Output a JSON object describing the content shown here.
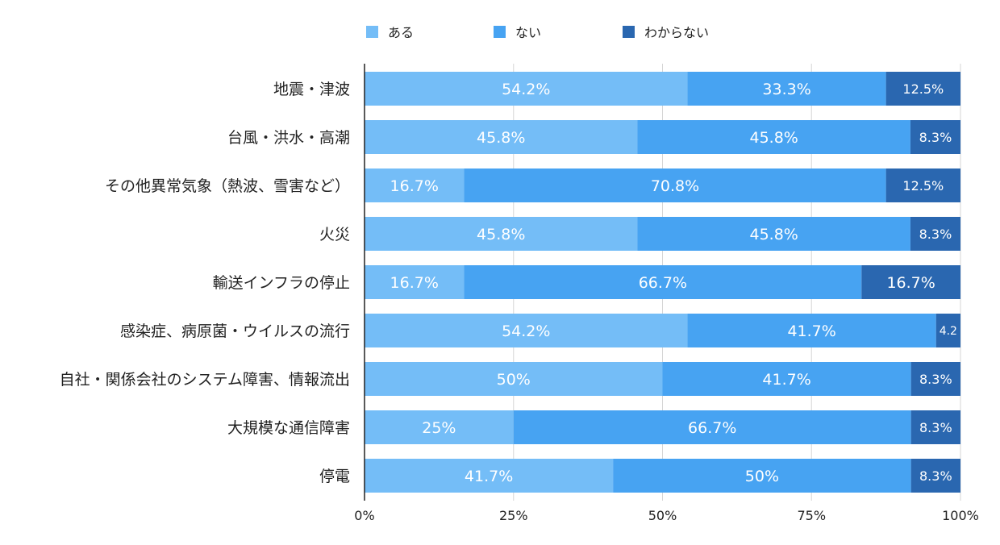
{
  "colors": {
    "ある": "#74bdf7",
    "ない": "#47a3f2",
    "わからない": "#2a67b0",
    "grid": "#d6d6d6",
    "axis": "#222222"
  },
  "chart_data": {
    "type": "bar",
    "orientation": "horizontal",
    "stacked": "percent",
    "title": "",
    "xlabel": "",
    "ylabel": "",
    "xlim": [
      0,
      100
    ],
    "x_ticks": [
      "0%",
      "25%",
      "50%",
      "75%",
      "100%"
    ],
    "grid": true,
    "legend": {
      "position": "top",
      "entries": [
        "ある",
        "ない",
        "わからない"
      ]
    },
    "categories": [
      "地震・津波",
      "台風・洪水・高潮",
      "その他異常気象（熱波、雪害など）",
      "火災",
      "輸送インフラの停止",
      "感染症、病原菌・ウイルスの流行",
      "自社・関係会社のシステム障害、情報流出",
      "大規模な通信障害",
      "停電"
    ],
    "series": [
      {
        "name": "ある",
        "values": [
          54.2,
          45.8,
          16.7,
          45.8,
          16.7,
          54.2,
          50,
          25,
          41.7
        ],
        "labels": [
          "54.2%",
          "45.8%",
          "16.7%",
          "45.8%",
          "16.7%",
          "54.2%",
          "50%",
          "25%",
          "41.7%"
        ]
      },
      {
        "name": "ない",
        "values": [
          33.3,
          45.8,
          70.8,
          45.8,
          66.7,
          41.7,
          41.7,
          66.7,
          50
        ],
        "labels": [
          "33.3%",
          "45.8%",
          "70.8%",
          "45.8%",
          "66.7%",
          "41.7%",
          "41.7%",
          "66.7%",
          "50%"
        ]
      },
      {
        "name": "わからない",
        "values": [
          12.5,
          8.3,
          12.5,
          8.3,
          16.7,
          4.2,
          8.3,
          8.3,
          8.3
        ],
        "labels": [
          "12.5%",
          "8.3%",
          "12.5%",
          "8.3%",
          "16.7%",
          "4.2",
          "8.3%",
          "8.3%",
          "8.3%"
        ]
      }
    ]
  }
}
